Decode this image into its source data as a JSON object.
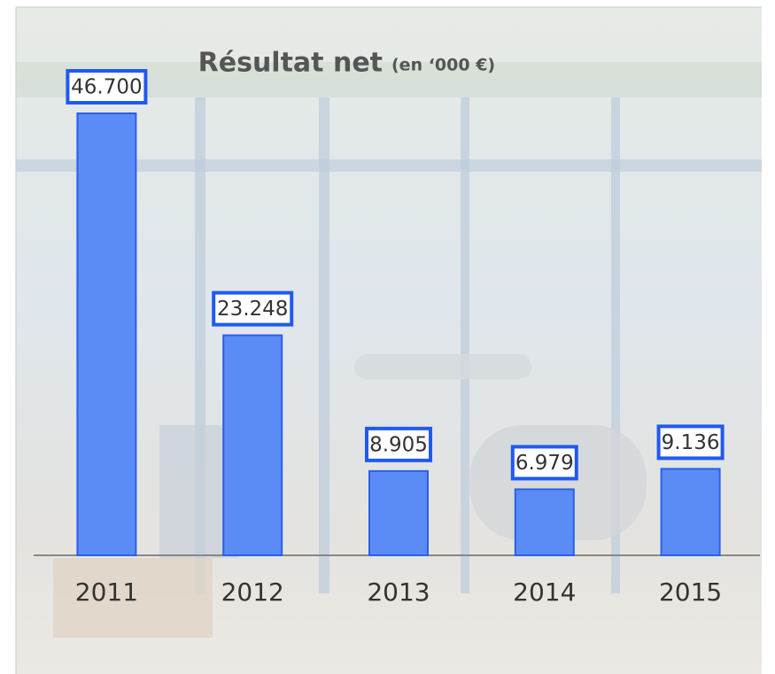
{
  "chart_data": {
    "type": "bar",
    "title": "Résultat net",
    "subtitle": "(en ‘000 €)",
    "categories": [
      "2011",
      "2012",
      "2013",
      "2014",
      "2015"
    ],
    "values": [
      46700,
      23248,
      8905,
      6979,
      9136
    ],
    "value_labels": [
      "46.700",
      "23.248",
      "8.905",
      "6.979",
      "9.136"
    ],
    "color": "#5b8cf6"
  }
}
